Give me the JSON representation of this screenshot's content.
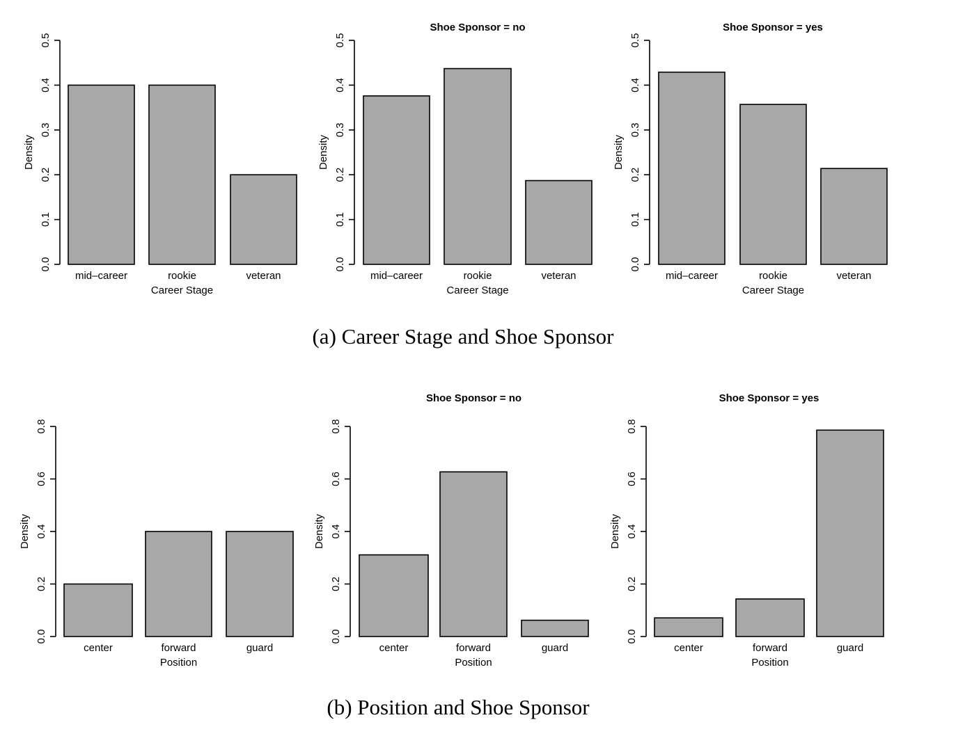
{
  "figure": {
    "caption_a": "(a)  Career Stage and Shoe Sponsor",
    "caption_b": "(b)  Position and Shoe Sponsor"
  },
  "style": {
    "bar_fill": "#a8a8a8",
    "bar_stroke": "#000000"
  },
  "chart_data": [
    {
      "type": "bar",
      "title": "",
      "categories": [
        "mid–career",
        "rookie",
        "veteran"
      ],
      "values": [
        0.4,
        0.4,
        0.2
      ],
      "xlabel": "Career Stage",
      "ylabel": "Density",
      "ylim": [
        0,
        0.5
      ],
      "yticks": [
        0.0,
        0.1,
        0.2,
        0.3,
        0.4,
        0.5
      ],
      "ytick_labels": [
        "0.0",
        "0.1",
        "0.2",
        "0.3",
        "0.4",
        "0.5"
      ]
    },
    {
      "type": "bar",
      "title": "Shoe Sponsor = no",
      "categories": [
        "mid–career",
        "rookie",
        "veteran"
      ],
      "values": [
        0.376,
        0.437,
        0.187
      ],
      "xlabel": "Career Stage",
      "ylabel": "Density",
      "ylim": [
        0,
        0.5
      ],
      "yticks": [
        0.0,
        0.1,
        0.2,
        0.3,
        0.4,
        0.5
      ],
      "ytick_labels": [
        "0.0",
        "0.1",
        "0.2",
        "0.3",
        "0.4",
        "0.5"
      ]
    },
    {
      "type": "bar",
      "title": "Shoe Sponsor = yes",
      "categories": [
        "mid–career",
        "rookie",
        "veteran"
      ],
      "values": [
        0.429,
        0.357,
        0.214
      ],
      "xlabel": "Career Stage",
      "ylabel": "Density",
      "ylim": [
        0,
        0.5
      ],
      "yticks": [
        0.0,
        0.1,
        0.2,
        0.3,
        0.4,
        0.5
      ],
      "ytick_labels": [
        "0.0",
        "0.1",
        "0.2",
        "0.3",
        "0.4",
        "0.5"
      ]
    },
    {
      "type": "bar",
      "title": "",
      "categories": [
        "center",
        "forward",
        "guard"
      ],
      "values": [
        0.2,
        0.4,
        0.4
      ],
      "xlabel": "Position",
      "ylabel": "Density",
      "ylim": [
        0,
        0.8
      ],
      "yticks": [
        0.0,
        0.2,
        0.4,
        0.6,
        0.8
      ],
      "ytick_labels": [
        "0.0",
        "0.2",
        "0.4",
        "0.6",
        "0.8"
      ]
    },
    {
      "type": "bar",
      "title": "Shoe Sponsor = no",
      "categories": [
        "center",
        "forward",
        "guard"
      ],
      "values": [
        0.311,
        0.627,
        0.062
      ],
      "xlabel": "Position",
      "ylabel": "Density",
      "ylim": [
        0,
        0.8
      ],
      "yticks": [
        0.0,
        0.2,
        0.4,
        0.6,
        0.8
      ],
      "ytick_labels": [
        "0.0",
        "0.2",
        "0.4",
        "0.6",
        "0.8"
      ]
    },
    {
      "type": "bar",
      "title": "Shoe Sponsor = yes",
      "categories": [
        "center",
        "forward",
        "guard"
      ],
      "values": [
        0.071,
        0.143,
        0.786
      ],
      "xlabel": "Position",
      "ylabel": "Density",
      "ylim": [
        0,
        0.8
      ],
      "yticks": [
        0.0,
        0.2,
        0.4,
        0.6,
        0.8
      ],
      "ytick_labels": [
        "0.0",
        "0.2",
        "0.4",
        "0.6",
        "0.8"
      ]
    }
  ]
}
